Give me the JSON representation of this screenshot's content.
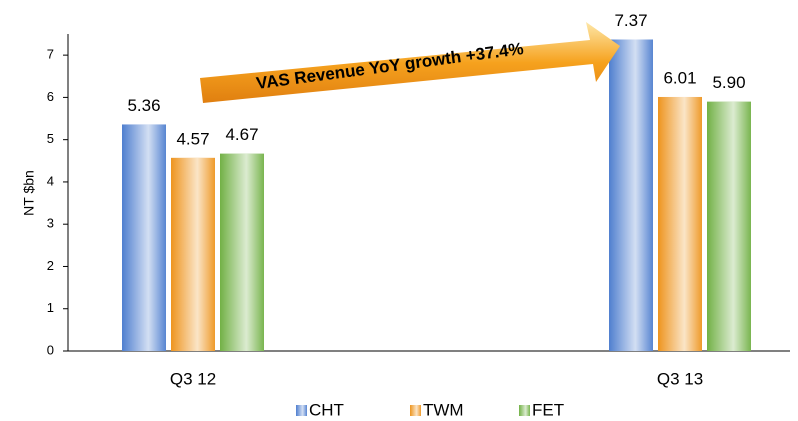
{
  "chart_data": {
    "type": "bar",
    "categories": [
      "Q3 12",
      "Q3 13"
    ],
    "series": [
      {
        "name": "CHT",
        "color": "#4f7fcf",
        "values": [
          5.36,
          7.37
        ]
      },
      {
        "name": "TWM",
        "color": "#ee951f",
        "values": [
          4.57,
          6.01
        ],
        "value_labels": [
          "4.57",
          "6.01"
        ]
      },
      {
        "name": "FET",
        "color": "#72b146",
        "values": [
          4.67,
          5.9
        ],
        "value_labels": [
          "4.67",
          "5.90"
        ]
      }
    ],
    "y_label": "NT $bn",
    "annotation": "VAS Revenue YoY growth +37.4%",
    "ylim": [
      0,
      7.5
    ],
    "yticks": [
      0,
      1,
      2,
      3,
      4,
      5,
      6,
      7
    ],
    "legend": "bottom"
  }
}
